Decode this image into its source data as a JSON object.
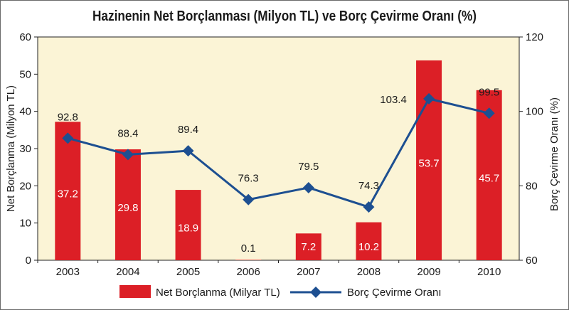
{
  "chart_data": {
    "type": "bar",
    "title": "Hazinenin Net Borçlanması (Milyon TL) ve Borç Çevirme Oranı (%)",
    "categories": [
      "2003",
      "2004",
      "2005",
      "2006",
      "2007",
      "2008",
      "2009",
      "2010"
    ],
    "ylabel": "Net Borçlanma (Milyon TL)",
    "y2label": "Borç Çevirme Oranı (%)",
    "ylim": [
      0,
      60
    ],
    "y2lim": [
      60,
      120
    ],
    "yticks": [
      "0",
      "10",
      "20",
      "30",
      "40",
      "50",
      "60"
    ],
    "y2ticks": [
      "60",
      "80",
      "100",
      "120"
    ],
    "grid": false,
    "legend_position": "bottom",
    "series": [
      {
        "name": "Net Borçlanma (Milyar TL)",
        "type": "bar",
        "axis": "left",
        "color": "#dc1f26",
        "values": [
          37.2,
          29.8,
          18.9,
          0.1,
          7.2,
          10.2,
          53.7,
          45.7
        ],
        "labels": [
          "37.2",
          "29.8",
          "18.9",
          "0.1",
          "7.2",
          "10.2",
          "53.7",
          "45.7"
        ]
      },
      {
        "name": "Borç Çevirme Oranı",
        "type": "line",
        "axis": "right",
        "color": "#1d4f91",
        "values": [
          92.8,
          88.4,
          89.4,
          76.3,
          79.5,
          74.3,
          103.4,
          99.5
        ],
        "labels": [
          "92.8",
          "88.4",
          "89.4",
          "76.3",
          "79.5",
          "74.3",
          "103.4",
          "99.5"
        ]
      }
    ],
    "plot_background": "#fbf4d6"
  }
}
